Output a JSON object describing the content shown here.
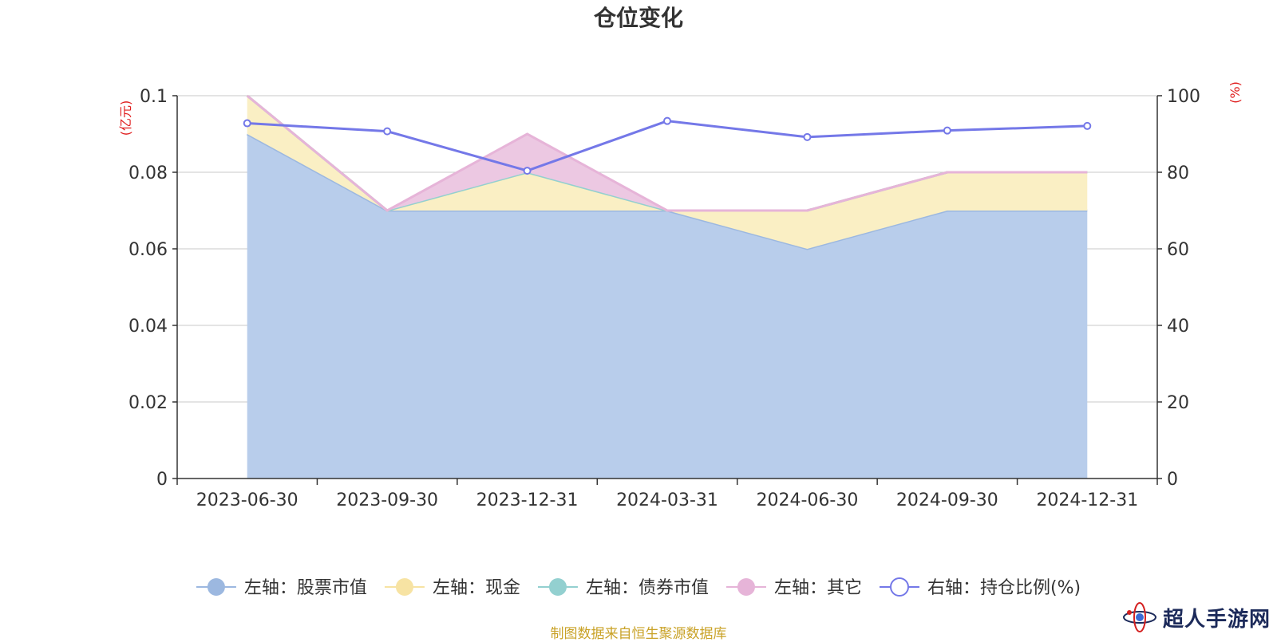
{
  "chart_data": {
    "type": "area",
    "title": "仓位变化",
    "left_axis_unit": "(亿元)",
    "right_axis_unit": "(%)",
    "left_ylim": [
      0,
      0.1
    ],
    "left_ticks": [
      "0",
      "0.02",
      "0.04",
      "0.06",
      "0.08",
      "0.1"
    ],
    "right_ylim": [
      0,
      100
    ],
    "right_ticks": [
      "0",
      "20",
      "40",
      "60",
      "80",
      "100"
    ],
    "grid": true,
    "categories": [
      "2023-06-30",
      "2023-09-30",
      "2023-12-31",
      "2024-03-31",
      "2024-06-30",
      "2024-09-30",
      "2024-12-31"
    ],
    "series": [
      {
        "name": "左轴：股票市值",
        "axis": "left",
        "kind": "area",
        "color": "#9cb8e0",
        "fill": "#b8cdeb",
        "values": [
          0.09,
          0.07,
          0.07,
          0.07,
          0.06,
          0.07,
          0.07
        ]
      },
      {
        "name": "左轴：现金",
        "axis": "left",
        "kind": "area",
        "color": "#f7e3a3",
        "fill": "#faefc4",
        "values": [
          0.01,
          0.0,
          0.01,
          0.0,
          0.01,
          0.01,
          0.01
        ]
      },
      {
        "name": "左轴：债券市值",
        "axis": "left",
        "kind": "area",
        "color": "#93d0d0",
        "fill": "#b8e2e2",
        "values": [
          0,
          0,
          0,
          0,
          0,
          0,
          0
        ]
      },
      {
        "name": "左轴：其它",
        "axis": "left",
        "kind": "area",
        "color": "#e6b4d8",
        "fill": "#ecc8e2",
        "values": [
          0.0,
          0.0,
          0.01,
          0.0,
          0.0,
          0.0,
          0.0
        ]
      },
      {
        "name": "右轴：持仓比例(%)",
        "axis": "right",
        "kind": "line",
        "color": "#7478e8",
        "values": [
          92.8,
          90.7,
          80.4,
          93.4,
          89.2,
          90.9,
          92.1
        ]
      }
    ],
    "legend_position": "bottom"
  },
  "footer": {
    "source": "制图数据来自恒生聚源数据库",
    "watermark_text": "超人手游网"
  },
  "colors": {
    "title": "#333333",
    "axis_unit": "#e02020",
    "axis_line": "#333333",
    "grid": "#c8c8c8",
    "source": "#c9a227"
  }
}
